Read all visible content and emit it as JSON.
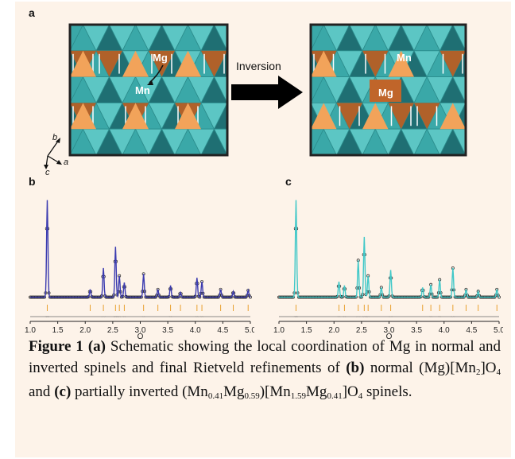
{
  "panels": {
    "a": "a",
    "b": "b",
    "c": "c"
  },
  "schematic": {
    "arrow_label": "Inversion",
    "left_labels": {
      "mg": "Mg",
      "mn": "Mn"
    },
    "right_labels": {
      "mg": "Mg",
      "mn": "Mn"
    },
    "axes": {
      "b": "b",
      "c": "c",
      "a": "a"
    },
    "colors": {
      "teal": "#3aa8a8",
      "teal_light": "#5cc6c4",
      "teal_dark": "#1f6f73",
      "orange": "#f2a35a",
      "brown": "#b0612a",
      "frame": "#222222"
    }
  },
  "chart_data": [
    {
      "panel": "b",
      "type": "line",
      "xlabel": "Q",
      "xlim": [
        1.0,
        5.0
      ],
      "xticks": [
        "1.0",
        "1.5",
        "2.0",
        "2.5",
        "3.0",
        "3.5",
        "4.0",
        "4.5",
        "5.0"
      ],
      "fit_color": "#3b3bb0",
      "peaks_Q": [
        1.31,
        2.09,
        2.33,
        2.55,
        2.62,
        2.71,
        3.06,
        3.32,
        3.55,
        3.73,
        4.03,
        4.12,
        4.46,
        4.69,
        4.96
      ],
      "peaks_rel_intensity": [
        1.0,
        0.08,
        0.3,
        0.52,
        0.22,
        0.15,
        0.24,
        0.08,
        0.12,
        0.05,
        0.2,
        0.16,
        0.08,
        0.06,
        0.07
      ],
      "tick_color": "#e8a030"
    },
    {
      "panel": "c",
      "type": "line",
      "xlabel": "Q",
      "xlim": [
        1.0,
        5.0
      ],
      "xticks": [
        "1.0",
        "1.5",
        "2.0",
        "2.5",
        "3.0",
        "3.5",
        "4.0",
        "4.5",
        "5.0"
      ],
      "fit_color": "#40c8c8",
      "peaks_Q": [
        1.31,
        2.09,
        2.19,
        2.44,
        2.55,
        2.62,
        2.86,
        3.03,
        3.61,
        3.76,
        3.92,
        4.16,
        4.4,
        4.62,
        4.96
      ],
      "peaks_rel_intensity": [
        1.0,
        0.16,
        0.12,
        0.38,
        0.62,
        0.22,
        0.1,
        0.28,
        0.1,
        0.13,
        0.18,
        0.3,
        0.08,
        0.06,
        0.08
      ],
      "tick_color": "#e8a030"
    }
  ],
  "caption": {
    "figure_label": "Figure 1",
    "a_label": "(a)",
    "text_a": " Schematic showing the local coordination of Mg in normal and inverted spinels and final Rietveld refinements of ",
    "b_label": "(b)",
    "text_b": " normal (Mg)[Mn",
    "sub_b1": "2",
    "text_b2": "]O",
    "sub_b2": "4",
    "text_mid": " and ",
    "c_label": "(c)",
    "text_c": " partially inverted (Mn",
    "sub_c1": "0.41",
    "text_c2": "Mg",
    "sub_c2": "0.59",
    "text_c3": ")[Mn",
    "sub_c3": "1.59",
    "text_c4": "Mg",
    "sub_c4": "0.41",
    "text_c5": "]O",
    "sub_c5": "4",
    "text_end": " spinels."
  }
}
